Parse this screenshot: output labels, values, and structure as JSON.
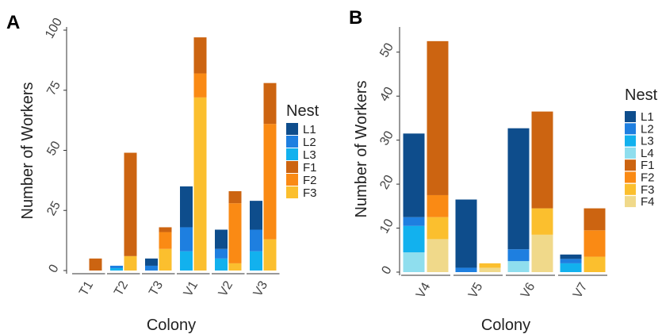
{
  "chart_data": [
    {
      "type": "bar",
      "stacked": true,
      "panel_label": "A",
      "xlabel": "Colony",
      "ylabel": "Number of Workers",
      "ylim": [
        0,
        100
      ],
      "yticks": [
        0,
        25,
        50,
        75,
        100
      ],
      "grid": false,
      "legend_title": "Nest",
      "legend_position": "right",
      "groups": [
        {
          "label": "T1",
          "bars": [
            {
              "kind": "L",
              "stack": []
            },
            {
              "kind": "F",
              "stack": [
                {
                  "series": "F1",
                  "value": 5
                }
              ]
            }
          ]
        },
        {
          "label": "T2",
          "bars": [
            {
              "kind": "L",
              "stack": [
                {
                  "series": "L3",
                  "value": 1
                },
                {
                  "series": "L2",
                  "value": 1
                }
              ]
            },
            {
              "kind": "F",
              "stack": [
                {
                  "series": "F3",
                  "value": 6
                },
                {
                  "series": "F1",
                  "value": 43
                }
              ]
            }
          ]
        },
        {
          "label": "T3",
          "bars": [
            {
              "kind": "L",
              "stack": [
                {
                  "series": "L2",
                  "value": 2
                },
                {
                  "series": "L1",
                  "value": 3
                }
              ]
            },
            {
              "kind": "F",
              "stack": [
                {
                  "series": "F3",
                  "value": 9
                },
                {
                  "series": "F2",
                  "value": 7
                },
                {
                  "series": "F1",
                  "value": 2
                }
              ]
            }
          ]
        },
        {
          "label": "V1",
          "bars": [
            {
              "kind": "L",
              "stack": [
                {
                  "series": "L3",
                  "value": 8
                },
                {
                  "series": "L2",
                  "value": 10
                },
                {
                  "series": "L1",
                  "value": 17
                }
              ]
            },
            {
              "kind": "F",
              "stack": [
                {
                  "series": "F3",
                  "value": 72
                },
                {
                  "series": "F2",
                  "value": 10
                },
                {
                  "series": "F1",
                  "value": 15
                }
              ]
            }
          ]
        },
        {
          "label": "V2",
          "bars": [
            {
              "kind": "L",
              "stack": [
                {
                  "series": "L3",
                  "value": 5
                },
                {
                  "series": "L2",
                  "value": 4
                },
                {
                  "series": "L1",
                  "value": 8
                }
              ]
            },
            {
              "kind": "F",
              "stack": [
                {
                  "series": "F3",
                  "value": 3
                },
                {
                  "series": "F2",
                  "value": 25
                },
                {
                  "series": "F1",
                  "value": 5
                }
              ]
            }
          ]
        },
        {
          "label": "V3",
          "bars": [
            {
              "kind": "L",
              "stack": [
                {
                  "series": "L3",
                  "value": 8
                },
                {
                  "series": "L2",
                  "value": 9
                },
                {
                  "series": "L1",
                  "value": 12
                }
              ]
            },
            {
              "kind": "F",
              "stack": [
                {
                  "series": "F3",
                  "value": 13
                },
                {
                  "series": "F2",
                  "value": 48
                },
                {
                  "series": "F1",
                  "value": 17
                }
              ]
            }
          ]
        }
      ],
      "series": [
        {
          "name": "L1",
          "color": "#0e4d8c"
        },
        {
          "name": "L2",
          "color": "#1e7fe0"
        },
        {
          "name": "L3",
          "color": "#12b1ee"
        },
        {
          "name": "F1",
          "color": "#cc6411"
        },
        {
          "name": "F2",
          "color": "#fa8a14"
        },
        {
          "name": "F3",
          "color": "#fbbf2e"
        }
      ]
    },
    {
      "type": "bar",
      "stacked": true,
      "panel_label": "B",
      "xlabel": "Colony",
      "ylabel": "Number of Workers",
      "ylim": [
        0,
        55
      ],
      "yticks": [
        0,
        10,
        20,
        30,
        40,
        50
      ],
      "grid": false,
      "legend_title": "Nest",
      "legend_position": "right",
      "groups": [
        {
          "label": "V4",
          "bars": [
            {
              "kind": "L",
              "stack": [
                {
                  "series": "L4",
                  "value": 4.5
                },
                {
                  "series": "L3",
                  "value": 6
                },
                {
                  "series": "L2",
                  "value": 2
                },
                {
                  "series": "L1",
                  "value": 19
                }
              ]
            },
            {
              "kind": "F",
              "stack": [
                {
                  "series": "F4",
                  "value": 7.5
                },
                {
                  "series": "F3",
                  "value": 5
                },
                {
                  "series": "F2",
                  "value": 5
                },
                {
                  "series": "F1",
                  "value": 35
                }
              ]
            }
          ]
        },
        {
          "label": "V5",
          "bars": [
            {
              "kind": "L",
              "stack": [
                {
                  "series": "L2",
                  "value": 1
                },
                {
                  "series": "L1",
                  "value": 15.5
                }
              ]
            },
            {
              "kind": "F",
              "stack": [
                {
                  "series": "F4",
                  "value": 1
                },
                {
                  "series": "F3",
                  "value": 1
                }
              ]
            }
          ]
        },
        {
          "label": "V6",
          "bars": [
            {
              "kind": "L",
              "stack": [
                {
                  "series": "L4",
                  "value": 2.5
                },
                {
                  "series": "L2",
                  "value": 2.7
                },
                {
                  "series": "L1",
                  "value": 27.5
                }
              ]
            },
            {
              "kind": "F",
              "stack": [
                {
                  "series": "F4",
                  "value": 8.5
                },
                {
                  "series": "F3",
                  "value": 6
                },
                {
                  "series": "F1",
                  "value": 22
                }
              ]
            }
          ]
        },
        {
          "label": "V7",
          "bars": [
            {
              "kind": "L",
              "stack": [
                {
                  "series": "L3",
                  "value": 2
                },
                {
                  "series": "L2",
                  "value": 1
                },
                {
                  "series": "L1",
                  "value": 1
                }
              ]
            },
            {
              "kind": "F",
              "stack": [
                {
                  "series": "F3",
                  "value": 3.5
                },
                {
                  "series": "F2",
                  "value": 6
                },
                {
                  "series": "F1",
                  "value": 5
                }
              ]
            }
          ]
        }
      ],
      "series": [
        {
          "name": "L1",
          "color": "#0e4d8c"
        },
        {
          "name": "L2",
          "color": "#1e7fe0"
        },
        {
          "name": "L3",
          "color": "#12b1ee"
        },
        {
          "name": "L4",
          "color": "#8fdeee"
        },
        {
          "name": "F1",
          "color": "#cc6411"
        },
        {
          "name": "F2",
          "color": "#fa8a14"
        },
        {
          "name": "F3",
          "color": "#fbbf2e"
        },
        {
          "name": "F4",
          "color": "#f0d98a"
        }
      ]
    }
  ]
}
